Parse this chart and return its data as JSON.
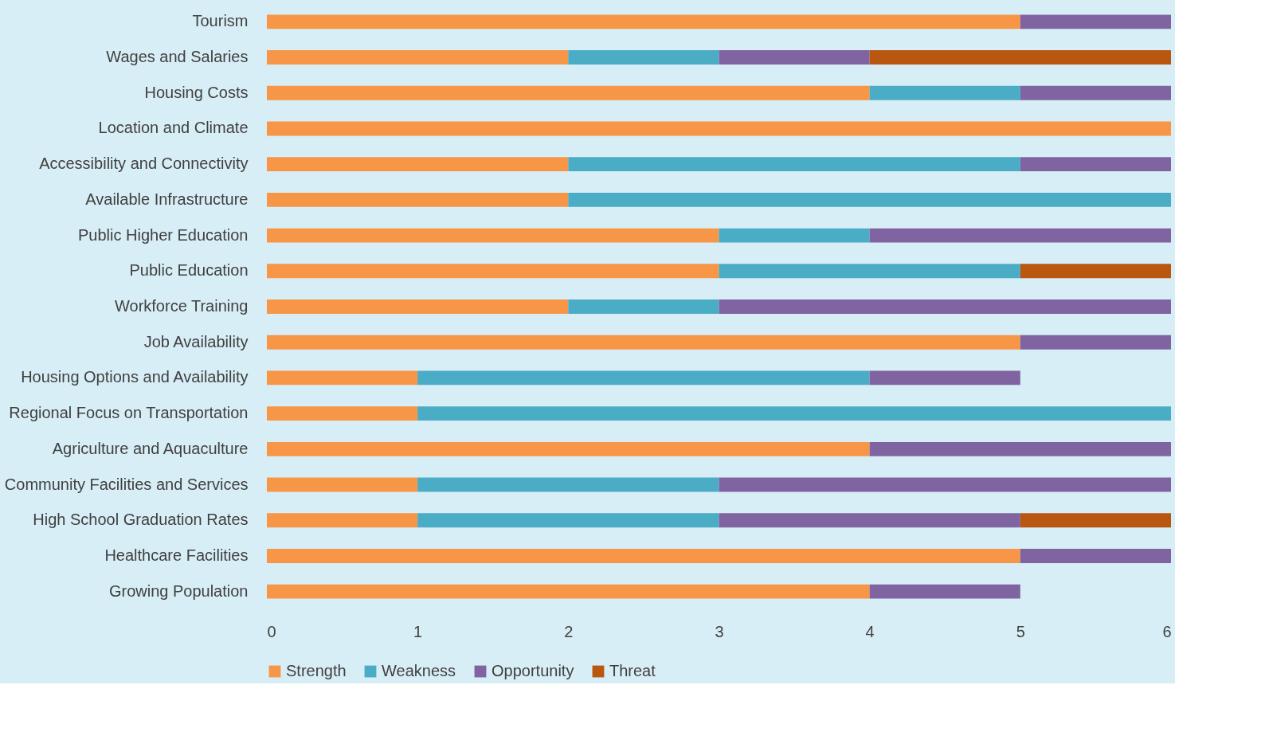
{
  "chart_data": {
    "type": "bar",
    "orientation": "horizontal",
    "stacked": true,
    "categories": [
      "Tourism",
      "Wages and Salaries",
      "Housing Costs",
      "Location and Climate",
      "Accessibility and Connectivity",
      "Available Infrastructure",
      "Public Higher Education",
      "Public Education",
      "Workforce Training",
      "Job Availability",
      "Housing Options and Availability",
      "Regional Focus on Transportation",
      "Agriculture and Aquaculture",
      "Community Facilities and Services",
      "High School Graduation Rates",
      "Healthcare Facilities",
      "Growing Population"
    ],
    "series": [
      {
        "name": "Strength",
        "color": "#f79646",
        "values": [
          5,
          2,
          4,
          6,
          2,
          2,
          3,
          3,
          2,
          5,
          1,
          1,
          4,
          1,
          1,
          5,
          4
        ]
      },
      {
        "name": "Weakness",
        "color": "#4bacc6",
        "values": [
          0,
          1,
          1,
          0,
          3,
          4,
          1,
          2,
          1,
          0,
          3,
          5,
          0,
          2,
          2,
          0,
          0
        ]
      },
      {
        "name": "Opportunity",
        "color": "#8064a2",
        "values": [
          1,
          1,
          1,
          0,
          1,
          0,
          2,
          0,
          3,
          1,
          1,
          0,
          2,
          3,
          2,
          1,
          1
        ]
      },
      {
        "name": "Threat",
        "color": "#b9560f",
        "values": [
          0,
          2,
          0,
          0,
          0,
          0,
          0,
          1,
          0,
          0,
          0,
          0,
          0,
          0,
          1,
          0,
          0
        ]
      }
    ],
    "xlim": [
      0,
      6
    ],
    "xticks": [
      0,
      1,
      2,
      3,
      4,
      5,
      6
    ],
    "grid": false,
    "legend": "bottom"
  }
}
